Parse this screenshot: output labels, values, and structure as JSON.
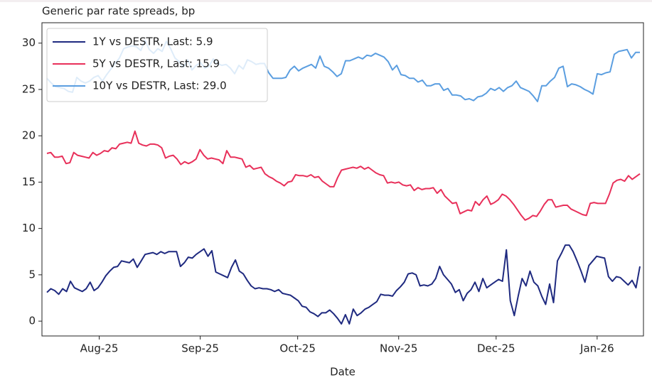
{
  "chart_data": {
    "type": "line",
    "title": "Generic par rate spreads, bp",
    "x_label": "Date",
    "xlim": [
      2025.537,
      2026.036
    ],
    "ylim": [
      -1.6,
      32.2
    ],
    "xticks": [
      {
        "value": 2025.581,
        "label": "Aug-25"
      },
      {
        "value": 2025.666,
        "label": "Sep-25"
      },
      {
        "value": 2025.748,
        "label": "Oct-25"
      },
      {
        "value": 2025.833,
        "label": "Nov-25"
      },
      {
        "value": 2025.915,
        "label": "Dec-25"
      },
      {
        "value": 2026.0,
        "label": "Jan-26"
      }
    ],
    "yticks": [
      0,
      5,
      10,
      15,
      20,
      25,
      30
    ],
    "grid": false,
    "legend": "upper left",
    "series": [
      {
        "name": "1Y vs DESTR, Last: 5.9",
        "color": "#1f2a80",
        "values": [
          3.1,
          3.5,
          3.3,
          2.9,
          3.5,
          3.2,
          4.3,
          3.6,
          3.4,
          3.2,
          3.5,
          4.2,
          3.3,
          3.6,
          4.2,
          4.9,
          5.4,
          5.8,
          5.9,
          6.5,
          6.4,
          6.3,
          6.7,
          5.8,
          6.5,
          7.2,
          7.3,
          7.4,
          7.2,
          7.5,
          7.3,
          7.5,
          7.5,
          7.5,
          5.9,
          6.3,
          6.9,
          6.8,
          7.2,
          7.5,
          7.8,
          7.0,
          7.6,
          5.3,
          5.1,
          4.9,
          4.7,
          5.8,
          6.6,
          5.4,
          5.1,
          4.4,
          3.8,
          3.5,
          3.6,
          3.5,
          3.5,
          3.4,
          3.2,
          3.4,
          3.0,
          2.9,
          2.8,
          2.5,
          2.2,
          1.6,
          1.5,
          1.0,
          0.8,
          0.5,
          0.9,
          0.9,
          1.2,
          0.8,
          0.3,
          -0.3,
          0.7,
          -0.3,
          1.3,
          0.6,
          0.9,
          1.3,
          1.5,
          1.8,
          2.1,
          2.9,
          2.8,
          2.8,
          2.7,
          3.3,
          3.7,
          4.2,
          5.1,
          5.2,
          5.0,
          3.8,
          3.9,
          3.8,
          4.0,
          4.6,
          5.9,
          5.0,
          4.5,
          4.0,
          3.1,
          3.4,
          2.2,
          3.0,
          3.4,
          4.2,
          3.2,
          4.6,
          3.6,
          3.9,
          4.2,
          4.5,
          4.3,
          7.7,
          2.2,
          0.6,
          2.7,
          4.6,
          3.8,
          5.4,
          4.2,
          3.8,
          2.7,
          1.8,
          4.0,
          2.0,
          6.5,
          7.3,
          8.2,
          8.2,
          7.5,
          6.5,
          5.4,
          4.2,
          6.0,
          6.5,
          7.0,
          6.9,
          6.8,
          4.8,
          4.3,
          4.8,
          4.7,
          4.3,
          3.9,
          4.4,
          3.6,
          5.9
        ]
      },
      {
        "name": "5Y vs DESTR, Last: 15.9",
        "color": "#e8305a",
        "values": [
          18.1,
          18.2,
          17.7,
          17.7,
          17.8,
          17.0,
          17.1,
          18.2,
          17.9,
          17.8,
          17.7,
          17.6,
          18.2,
          17.9,
          18.1,
          18.4,
          18.3,
          18.7,
          18.6,
          19.1,
          19.2,
          19.3,
          19.2,
          20.5,
          19.2,
          19.0,
          18.9,
          19.1,
          19.1,
          19.0,
          18.7,
          17.6,
          17.8,
          17.9,
          17.5,
          16.9,
          17.2,
          17.0,
          17.2,
          17.5,
          18.5,
          17.9,
          17.5,
          17.6,
          17.5,
          17.4,
          17.0,
          18.4,
          17.7,
          17.7,
          17.6,
          17.5,
          16.6,
          16.8,
          16.4,
          16.5,
          16.6,
          15.9,
          15.6,
          15.4,
          15.1,
          14.9,
          14.6,
          15.0,
          15.1,
          15.8,
          15.7,
          15.7,
          15.6,
          15.8,
          15.5,
          15.6,
          15.1,
          14.8,
          14.5,
          14.5,
          15.5,
          16.3,
          16.4,
          16.5,
          16.6,
          16.5,
          16.7,
          16.4,
          16.6,
          16.3,
          16.0,
          15.8,
          15.7,
          14.9,
          15.0,
          14.9,
          15.0,
          14.7,
          14.6,
          14.7,
          14.1,
          14.4,
          14.2,
          14.3,
          14.3,
          14.4,
          13.8,
          14.2,
          13.5,
          13.1,
          12.7,
          12.8,
          11.6,
          11.8,
          12.0,
          11.9,
          12.9,
          12.5,
          13.1,
          13.5,
          12.6,
          12.8,
          13.1,
          13.7,
          13.5,
          13.1,
          12.6,
          12.0,
          11.4,
          10.9,
          11.1,
          11.4,
          11.3,
          11.9,
          12.6,
          13.1,
          13.1,
          12.3,
          12.4,
          12.5,
          12.5,
          12.1,
          11.9,
          11.7,
          11.5,
          11.4,
          12.7,
          12.8,
          12.7,
          12.7,
          12.7,
          13.7,
          14.9,
          15.2,
          15.3,
          15.1,
          15.7,
          15.3,
          15.6,
          15.9
        ]
      },
      {
        "name": "10Y vs DESTR, Last: 29.0",
        "color": "#5b9ee0",
        "values": [
          26.2,
          25.7,
          25.3,
          25.2,
          25.1,
          24.8,
          24.7,
          26.3,
          25.9,
          25.7,
          25.9,
          26.3,
          26.5,
          25.9,
          26.6,
          27.2,
          27.8,
          28.4,
          29.4,
          29.6,
          29.7,
          29.6,
          29.2,
          30.3,
          29.3,
          28.9,
          29.4,
          29.1,
          30.2,
          29.4,
          28.4,
          28.0,
          27.4,
          28.2,
          27.1,
          27.6,
          27.9,
          27.3,
          27.5,
          28.3,
          27.8,
          27.6,
          27.7,
          27.3,
          26.7,
          27.6,
          27.2,
          28.2,
          28.0,
          27.7,
          27.8,
          27.8,
          26.8,
          26.2,
          26.2,
          26.2,
          26.3,
          27.1,
          27.5,
          27.0,
          27.3,
          27.5,
          27.7,
          27.3,
          28.6,
          27.5,
          27.3,
          26.9,
          26.4,
          26.7,
          28.1,
          28.1,
          28.3,
          28.5,
          28.3,
          28.7,
          28.6,
          28.9,
          28.7,
          28.5,
          28.0,
          27.1,
          27.6,
          26.6,
          26.5,
          26.2,
          26.2,
          25.8,
          26.0,
          25.4,
          25.4,
          25.6,
          25.6,
          24.9,
          25.1,
          24.4,
          24.4,
          24.3,
          23.9,
          24.0,
          23.8,
          24.2,
          24.3,
          24.6,
          25.1,
          24.9,
          25.2,
          24.8,
          25.2,
          25.4,
          25.9,
          25.2,
          25.0,
          24.8,
          24.3,
          23.7,
          25.4,
          25.4,
          25.9,
          26.3,
          27.3,
          27.5,
          25.3,
          25.6,
          25.5,
          25.3,
          25.0,
          24.8,
          24.5,
          26.7,
          26.6,
          26.8,
          26.9,
          28.8,
          29.1,
          29.2,
          29.3,
          28.4,
          29.0,
          29.0
        ]
      }
    ]
  }
}
